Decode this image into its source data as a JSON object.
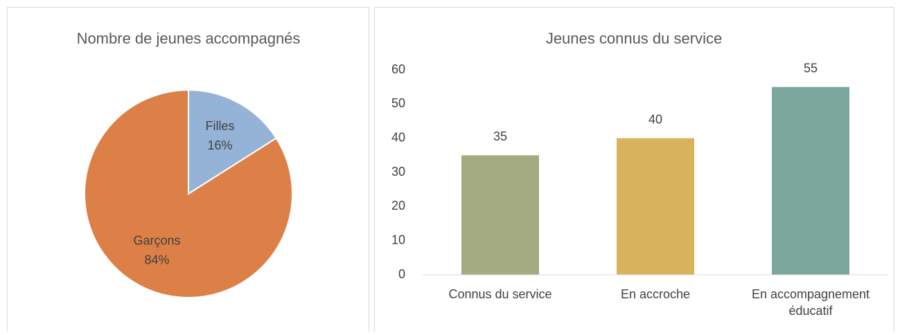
{
  "chart_data": [
    {
      "type": "pie",
      "title": "Nombre de jeunes accompagnés",
      "categories": [
        "Filles",
        "Garçons"
      ],
      "values": [
        16,
        84
      ],
      "value_labels": [
        "16%",
        "84%"
      ],
      "colors": [
        "#95b3d7",
        "#dd8047"
      ]
    },
    {
      "type": "bar",
      "title": "Jeunes connus du service",
      "categories": [
        "Connus du service",
        "En accroche",
        "En accompagnement éducatif"
      ],
      "values": [
        35,
        40,
        55
      ],
      "colors": [
        "#a5ab81",
        "#d8b25c",
        "#7ba79d"
      ],
      "ylim": [
        0,
        60
      ],
      "yticks": [
        0,
        10,
        20,
        30,
        40,
        50,
        60
      ],
      "grid": false
    }
  ]
}
